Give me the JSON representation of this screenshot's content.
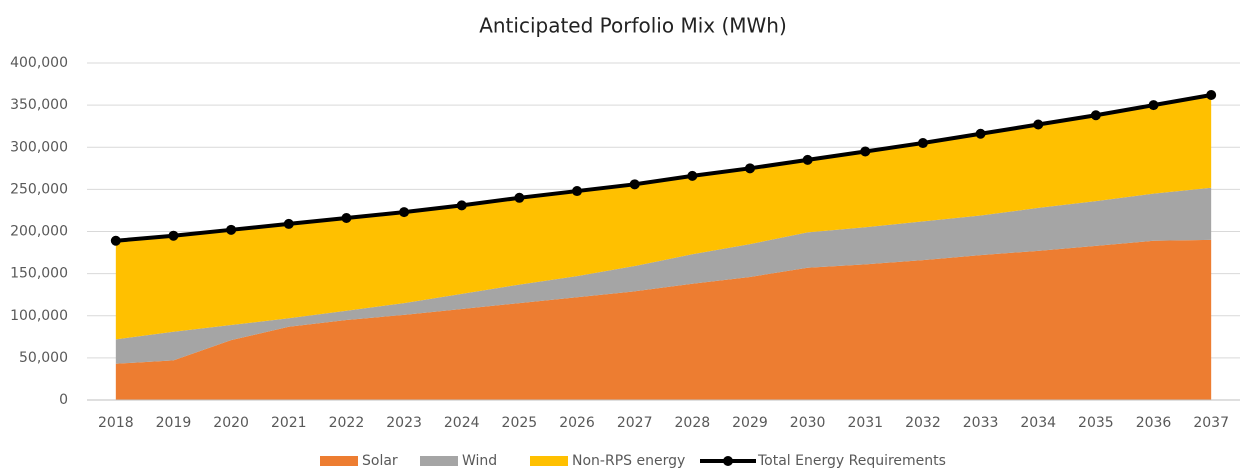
{
  "chart_data": {
    "type": "area",
    "stacked": true,
    "title": "Anticipated Porfolio Mix (MWh)",
    "categories": [
      "2018",
      "2019",
      "2020",
      "2021",
      "2022",
      "2023",
      "2024",
      "2025",
      "2026",
      "2027",
      "2028",
      "2029",
      "2030",
      "2031",
      "2032",
      "2033",
      "2034",
      "2035",
      "2036",
      "2037"
    ],
    "series": [
      {
        "name": "Solar",
        "color": "#ed7d31",
        "type": "area",
        "values": [
          43000,
          47000,
          71000,
          87000,
          95000,
          101000,
          108000,
          115000,
          122000,
          129000,
          138000,
          146000,
          157000,
          161000,
          166000,
          172000,
          177000,
          183000,
          189000,
          190000
        ]
      },
      {
        "name": "Wind",
        "color": "#a5a5a5",
        "type": "area",
        "values": [
          29000,
          34000,
          18000,
          10000,
          11000,
          14000,
          18000,
          22000,
          25000,
          30000,
          35000,
          39000,
          42000,
          44000,
          46000,
          47000,
          51000,
          53000,
          56000,
          62000
        ]
      },
      {
        "name": "Non-RPS energy",
        "color": "#ffc000",
        "type": "area",
        "values": [
          117000,
          114000,
          113000,
          112000,
          110000,
          108000,
          105000,
          103000,
          101000,
          97000,
          93000,
          90000,
          86000,
          90000,
          93000,
          97000,
          99000,
          102000,
          105000,
          110000
        ]
      },
      {
        "name": "Total Energy Requirements",
        "color": "#000000",
        "type": "line",
        "values": [
          189000,
          195000,
          202000,
          209000,
          216000,
          223000,
          231000,
          240000,
          248000,
          256000,
          266000,
          275000,
          285000,
          295000,
          305000,
          316000,
          327000,
          338000,
          350000,
          362000
        ]
      }
    ],
    "ylim": [
      0,
      400000
    ],
    "yticks": [
      0,
      {
        "value": 50000,
        "label": "50,000"
      },
      {
        "value": 100000,
        "label": "100,000"
      },
      {
        "value": 150000,
        "label": "150,000"
      },
      {
        "value": 200000,
        "label": "200,000"
      },
      {
        "value": 250000,
        "label": "250,000"
      },
      {
        "value": 300000,
        "label": "300,000"
      },
      {
        "value": 350000,
        "label": "350,000"
      },
      {
        "value": 400000,
        "label": "400,000"
      }
    ],
    "grid": true,
    "legend": "bottom"
  }
}
